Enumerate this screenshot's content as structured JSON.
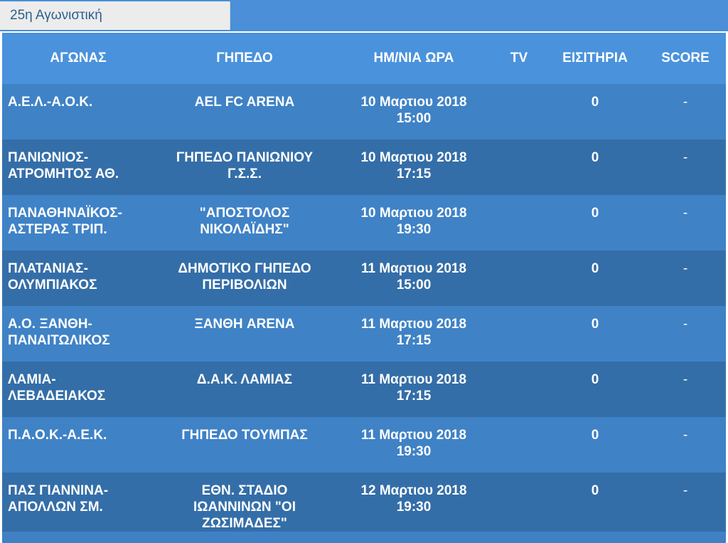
{
  "tab": {
    "label": "25η Αγωνιστική"
  },
  "columns": [
    "ΑΓΩΝΑΣ",
    "ΓΗΠΕΔΟ",
    "ΗΜ/ΝΙΑ ΩΡΑ",
    "TV",
    "ΕΙΣΙΤΗΡΙΑ",
    "SCORE"
  ],
  "rows": [
    {
      "match": [
        "Α.Ε.Λ.-Α.Ο.Κ."
      ],
      "stadium": [
        "AEL FC ARENA"
      ],
      "date": "10 Μαρτιου 2018",
      "time": "15:00",
      "tv": "",
      "tickets": "0",
      "score": "-"
    },
    {
      "match": [
        "ΠΑΝΙΩΝΙΟΣ-",
        "ΑΤΡΟΜΗΤΟΣ ΑΘ."
      ],
      "stadium": [
        "ΓΗΠΕΔΟ ΠΑΝΙΩΝΙΟΥ",
        "Γ.Σ.Σ."
      ],
      "date": "10 Μαρτιου 2018",
      "time": "17:15",
      "tv": "",
      "tickets": "0",
      "score": "-"
    },
    {
      "match": [
        "ΠΑΝΑΘΗΝΑΪΚΟΣ-",
        "ΑΣΤΕΡΑΣ ΤΡΙΠ."
      ],
      "stadium": [
        "\"ΑΠΟΣΤΟΛΟΣ",
        "ΝΙΚΟΛΑΪΔΗΣ\""
      ],
      "date": "10 Μαρτιου 2018",
      "time": "19:30",
      "tv": "",
      "tickets": "0",
      "score": "-"
    },
    {
      "match": [
        "ΠΛΑΤΑΝΙΑΣ-",
        "ΟΛΥΜΠΙΑΚΟΣ"
      ],
      "stadium": [
        "ΔΗΜΟΤΙΚΟ ΓΗΠΕΔΟ",
        "ΠΕΡΙΒΟΛΙΩΝ"
      ],
      "date": "11 Μαρτιου 2018",
      "time": "15:00",
      "tv": "",
      "tickets": "0",
      "score": "-"
    },
    {
      "match": [
        "Α.Ο. ΞΑΝΘΗ-",
        "ΠΑΝΑΙΤΩΛΙΚΟΣ"
      ],
      "stadium": [
        "ΞΑΝΘΗ ARENA"
      ],
      "date": "11 Μαρτιου 2018",
      "time": "17:15",
      "tv": "",
      "tickets": "0",
      "score": "-"
    },
    {
      "match": [
        "ΛΑΜΙΑ-ΛΕΒΑΔΕΙΑΚΟΣ"
      ],
      "stadium": [
        "Δ.Α.Κ. ΛΑΜΙΑΣ"
      ],
      "date": "11 Μαρτιου 2018",
      "time": "17:15",
      "tv": "",
      "tickets": "0",
      "score": "-"
    },
    {
      "match": [
        "Π.Α.Ο.Κ.-Α.Ε.Κ."
      ],
      "stadium": [
        "ΓΗΠΕΔΟ ΤΟΥΜΠΑΣ"
      ],
      "date": "11 Μαρτιου 2018",
      "time": "19:30",
      "tv": "",
      "tickets": "0",
      "score": "-"
    },
    {
      "match": [
        "ΠΑΣ ΓΙΑΝΝΙΝΑ-",
        "ΑΠΟΛΛΩΝ ΣΜ."
      ],
      "stadium": [
        "ΕΘΝ. ΣΤΑΔΙΟ",
        "ΙΩΑΝΝΙΝΩΝ \"ΟΙ",
        "ΖΩΣΙΜΑΔΕΣ\""
      ],
      "date": "12 Μαρτιου 2018",
      "time": "19:30",
      "tv": "",
      "tickets": "0",
      "score": "-"
    }
  ],
  "colors": {
    "header": "#4a92dc",
    "row_light": "#3f82c6",
    "row_dark": "#346ea8",
    "tab_bg": "#ececec",
    "tab_text": "#2d5f8f"
  }
}
